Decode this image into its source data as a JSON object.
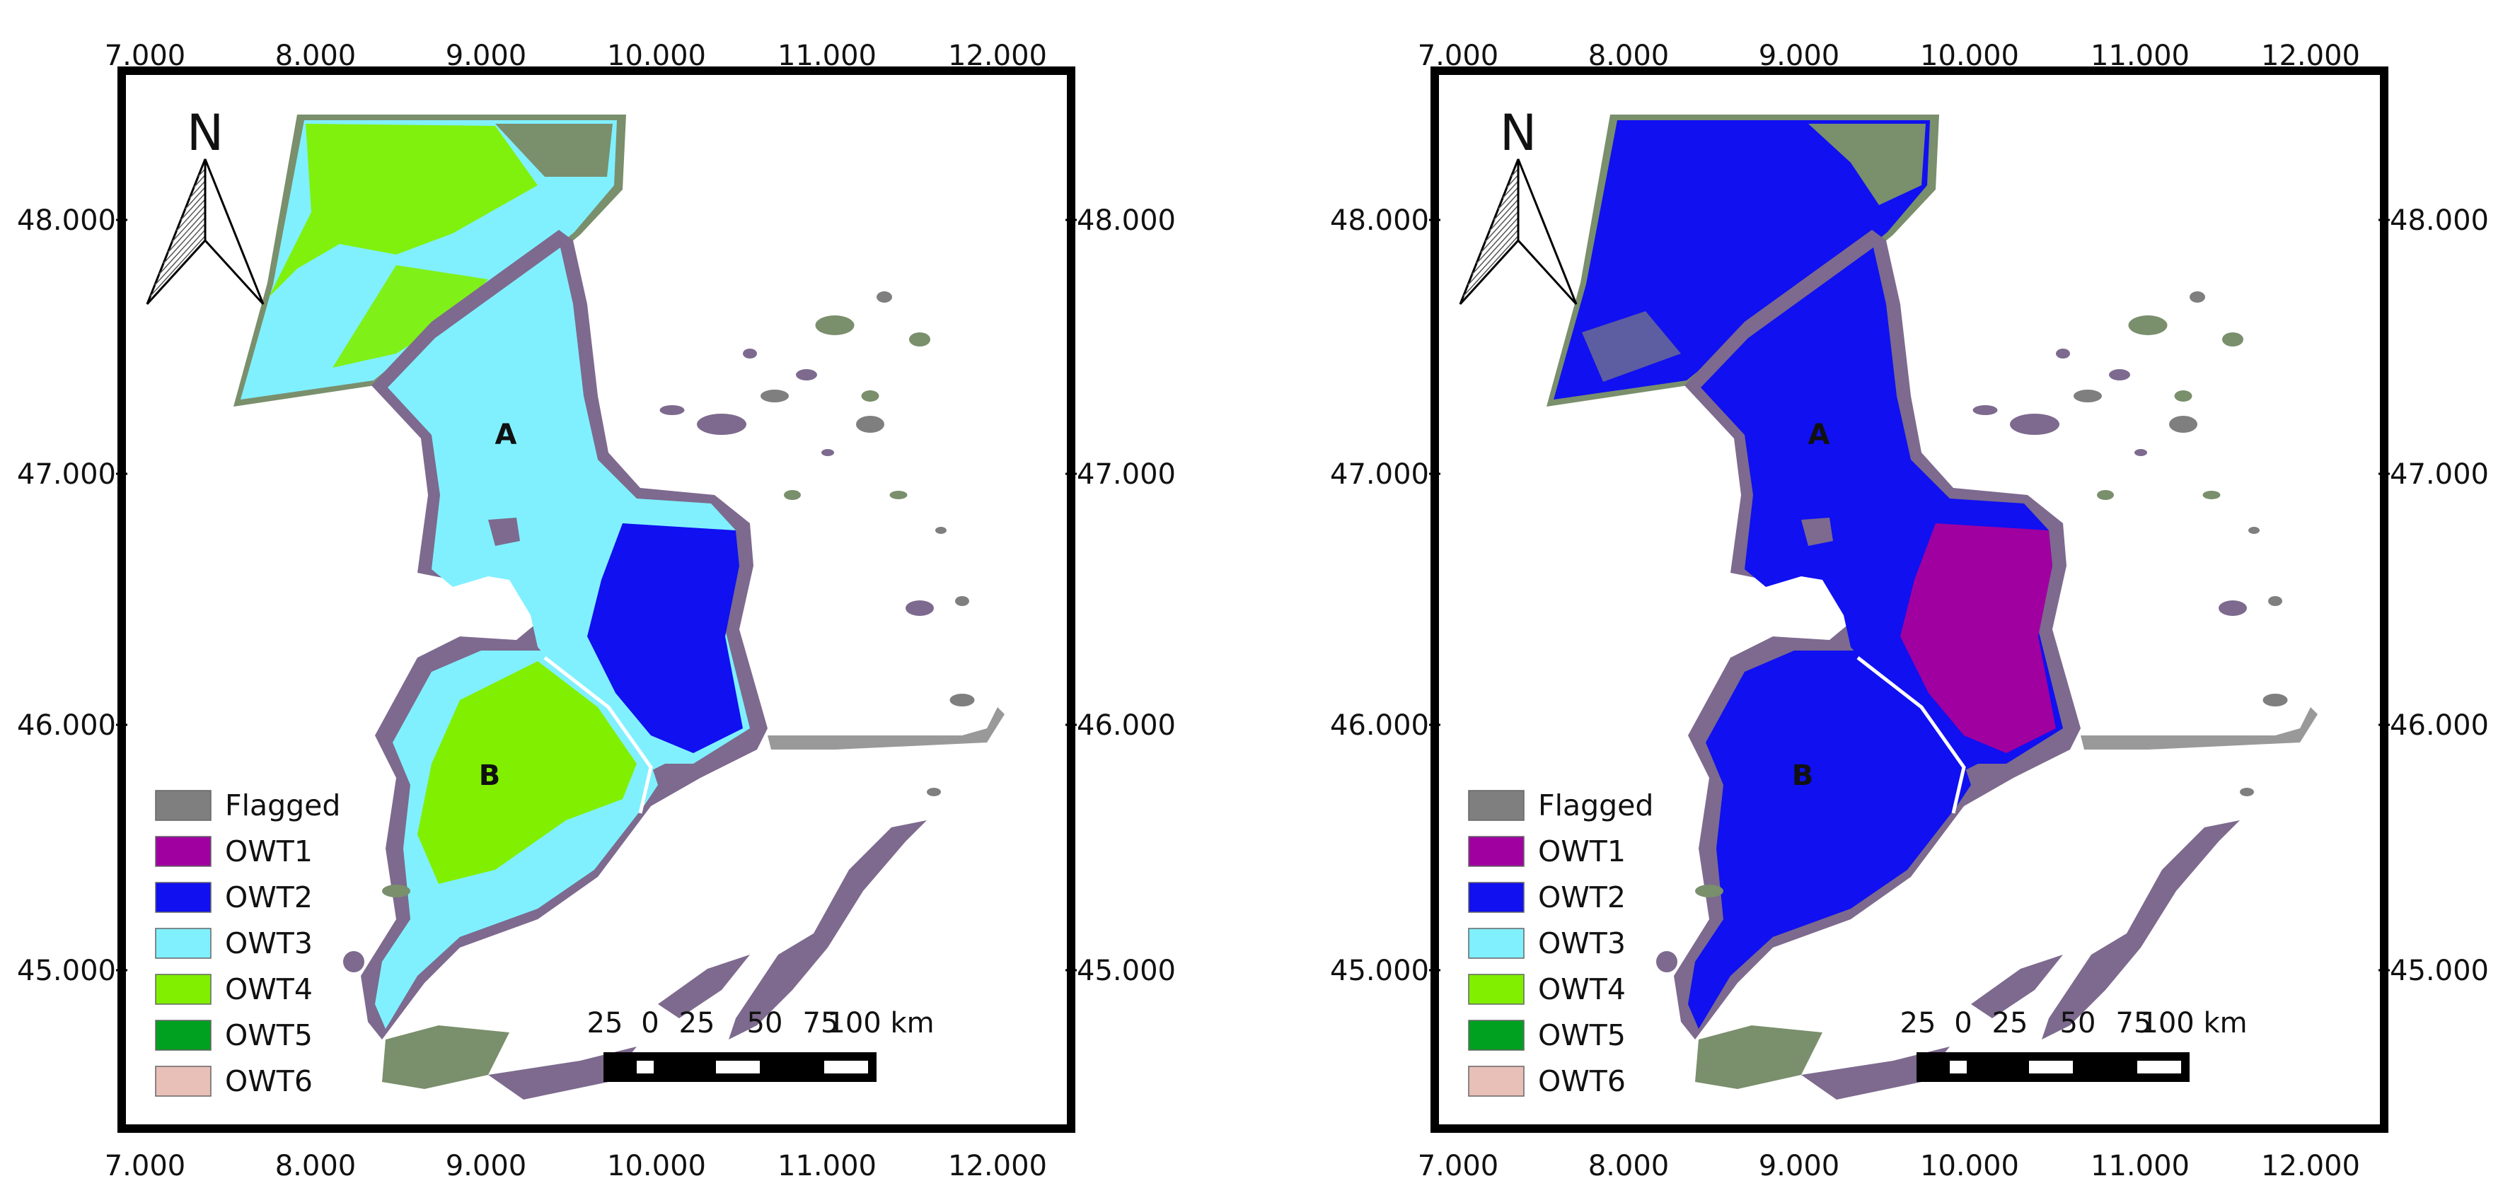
{
  "x_axis": {
    "ticks": [
      "7.000",
      "8.000",
      "9.000",
      "10.000",
      "11.000",
      "12.000"
    ]
  },
  "y_axis": {
    "ticks": [
      "48.000",
      "47.000",
      "46.000",
      "45.000"
    ]
  },
  "north_label": "N",
  "sites": [
    "A",
    "B"
  ],
  "legend": [
    {
      "label": "Flagged",
      "color": "#7f7f7f"
    },
    {
      "label": "OWT1",
      "color": "#a000a0"
    },
    {
      "label": "OWT2",
      "color": "#1010f0"
    },
    {
      "label": "OWT3",
      "color": "#80f0ff"
    },
    {
      "label": "OWT4",
      "color": "#80f000"
    },
    {
      "label": "OWT5",
      "color": "#00a020"
    },
    {
      "label": "OWT6",
      "color": "#e8c0b8"
    }
  ],
  "scale_bar": {
    "labels": [
      "25",
      "0",
      "25",
      "50",
      "75",
      "100 km"
    ]
  },
  "panels": [
    {
      "name": "left",
      "north_fill": "OWT3",
      "north_patch": "OWT4",
      "center_fill": "OWT3",
      "east_patch": "OWT2",
      "south_fill": "OWT3",
      "south_patch": "OWT4"
    },
    {
      "name": "right",
      "north_fill": "OWT2",
      "north_patch": "Flagged",
      "center_fill": "OWT2",
      "east_patch": "OWT1",
      "south_fill": "OWT2",
      "south_patch": "OWT2"
    }
  ]
}
